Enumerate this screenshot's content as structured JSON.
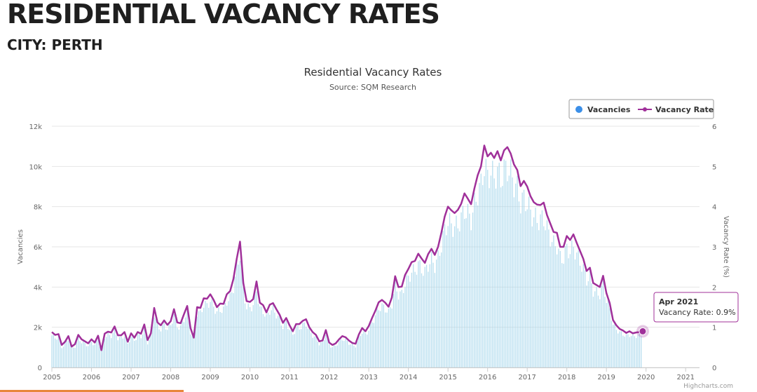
{
  "header": {
    "title": "RESIDENTIAL VACANCY RATES",
    "subtitle": "CITY: PERTH"
  },
  "colors": {
    "vacancies": "#9fd3ea",
    "vacancy_rate": "#a0309a",
    "legend_vacancies": "#3b8fe8",
    "grid": "#e6e6e6"
  },
  "chart_data": {
    "type": "bar",
    "title": "Residential Vacancy Rates",
    "subtitle": "Source: SQM Research",
    "x_range": [
      2005.0,
      2021.35
    ],
    "x_ticks": [
      "2005",
      "2006",
      "2007",
      "2008",
      "2009",
      "2010",
      "2011",
      "2012",
      "2013",
      "2014",
      "2015",
      "2016",
      "2017",
      "2018",
      "2019",
      "2020",
      "2021"
    ],
    "y_left": {
      "label": "Vacancies",
      "range": [
        0,
        12000
      ],
      "ticks": [
        "0",
        "2k",
        "4k",
        "6k",
        "8k",
        "10k",
        "12k"
      ]
    },
    "y_right": {
      "label": "Vacancy Rate (%)",
      "range": [
        0,
        6
      ],
      "ticks": [
        "0",
        "1",
        "2",
        "3",
        "4",
        "5",
        "6"
      ]
    },
    "grid": true,
    "legend": {
      "position": "top-right",
      "items": [
        "Vacancies",
        "Vacancy Rate"
      ]
    },
    "series": [
      {
        "name": "Vacancy Rate",
        "type": "line",
        "x_start": 2005.0,
        "step": 0.08333,
        "values": [
          0.88,
          0.81,
          0.83,
          0.56,
          0.64,
          0.78,
          0.52,
          0.58,
          0.81,
          0.7,
          0.65,
          0.6,
          0.7,
          0.62,
          0.79,
          0.43,
          0.84,
          0.89,
          0.87,
          1.02,
          0.8,
          0.8,
          0.88,
          0.64,
          0.85,
          0.74,
          0.88,
          0.84,
          1.07,
          0.68,
          0.85,
          1.48,
          1.12,
          1.05,
          1.17,
          1.06,
          1.15,
          1.45,
          1.12,
          1.1,
          1.32,
          1.53,
          0.98,
          0.74,
          1.5,
          1.48,
          1.72,
          1.71,
          1.82,
          1.68,
          1.5,
          1.59,
          1.58,
          1.82,
          1.9,
          2.2,
          2.7,
          3.13,
          2.1,
          1.65,
          1.63,
          1.7,
          2.14,
          1.61,
          1.55,
          1.37,
          1.56,
          1.6,
          1.45,
          1.31,
          1.11,
          1.23,
          1.05,
          0.9,
          1.08,
          1.08,
          1.16,
          1.2,
          1.0,
          0.88,
          0.81,
          0.65,
          0.67,
          0.93,
          0.62,
          0.56,
          0.6,
          0.7,
          0.78,
          0.75,
          0.67,
          0.61,
          0.59,
          0.82,
          0.98,
          0.9,
          1.03,
          1.23,
          1.41,
          1.62,
          1.68,
          1.61,
          1.51,
          1.74,
          2.27,
          2.0,
          2.01,
          2.3,
          2.45,
          2.62,
          2.65,
          2.83,
          2.71,
          2.6,
          2.82,
          2.95,
          2.8,
          3.0,
          3.35,
          3.75,
          4.0,
          3.91,
          3.84,
          3.92,
          4.07,
          4.33,
          4.2,
          4.06,
          4.45,
          4.78,
          5.0,
          5.52,
          5.25,
          5.34,
          5.21,
          5.38,
          5.15,
          5.4,
          5.48,
          5.32,
          5.05,
          4.91,
          4.51,
          4.64,
          4.5,
          4.26,
          4.11,
          4.05,
          4.04,
          4.1,
          3.79,
          3.58,
          3.37,
          3.35,
          3.0,
          3.0,
          3.27,
          3.17,
          3.31,
          3.1,
          2.9,
          2.7,
          2.4,
          2.48,
          2.1,
          2.05,
          2.0,
          2.28,
          1.85,
          1.6,
          1.18,
          1.05,
          0.96,
          0.92,
          0.86,
          0.9,
          0.85,
          0.87,
          0.88,
          0.9
        ]
      },
      {
        "name": "Vacancies",
        "type": "bar",
        "x_start": 2005.0,
        "step": 0.04167,
        "derived_from_rate_factor": 1950
      }
    ]
  },
  "tooltip": {
    "title": "Apr 2021",
    "text": "Vacancy Rate: 0.9%"
  },
  "credits": "Highcharts.com"
}
